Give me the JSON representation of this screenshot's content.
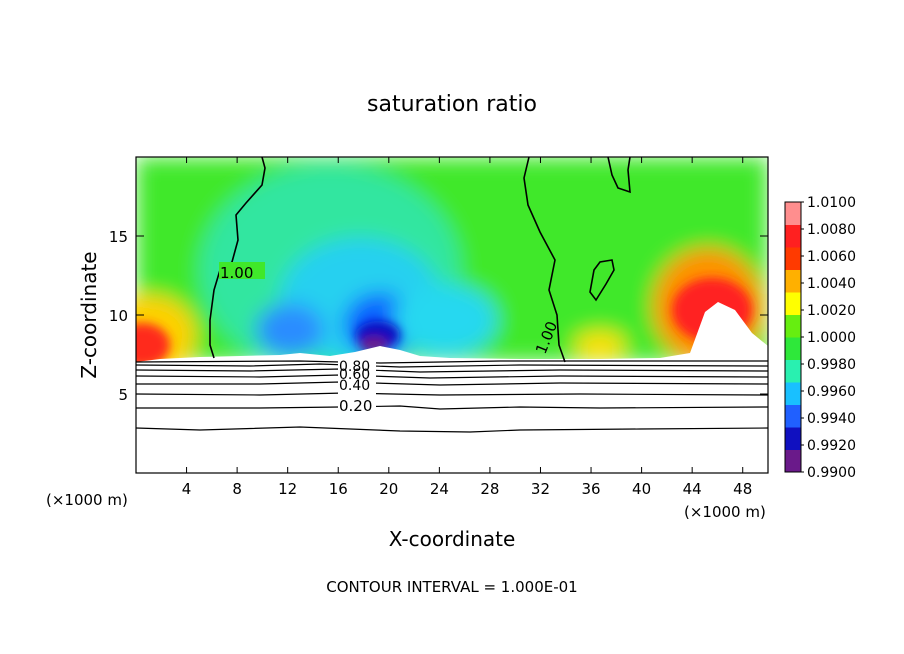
{
  "chart_data": {
    "type": "heatmap",
    "title": "saturation ratio",
    "xlabel": "X-coordinate",
    "ylabel": "Z-coordinate",
    "x_unit_left": "(×1000 m)",
    "x_unit_right": "(×1000 m)",
    "xlim": [
      0,
      50
    ],
    "ylim": [
      0,
      20
    ],
    "x_ticks": [
      4,
      8,
      12,
      16,
      20,
      24,
      28,
      32,
      36,
      40,
      44,
      48
    ],
    "y_ticks": [
      5,
      10,
      15
    ],
    "footer": "CONTOUR INTERVAL = 1.000E-01",
    "colorbar": {
      "levels": [
        "1.0100",
        "1.0080",
        "1.0060",
        "1.0040",
        "1.0020",
        "1.0000",
        "0.9980",
        "0.9960",
        "0.9940",
        "0.9920",
        "0.9900"
      ],
      "colors": [
        "#6a1a8a",
        "#1010c0",
        "#2060ff",
        "#19c0ff",
        "#29f0b0",
        "#2ee83a",
        "#66ee10",
        "#ffff00",
        "#ffb000",
        "#ff3a00",
        "#ff2020",
        "#ff8e8e"
      ]
    },
    "contour_labels": [
      {
        "text": "1.00",
        "x": 8.4,
        "z": 12.6
      },
      {
        "text": "1.00",
        "x": 32.7,
        "z": 8.6
      },
      {
        "text": "0.80",
        "x": 17.2,
        "z": 6.8
      },
      {
        "text": "0.60",
        "x": 17.2,
        "z": 6.4
      },
      {
        "text": "0.40",
        "x": 17.2,
        "z": 5.6
      },
      {
        "text": "0.20",
        "x": 17.2,
        "z": 4.0
      }
    ]
  }
}
